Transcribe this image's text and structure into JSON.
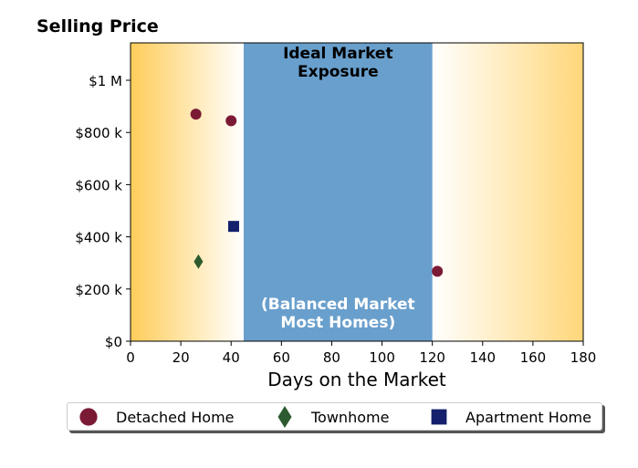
{
  "chart_data": {
    "type": "scatter",
    "title": "Selling Price",
    "xlabel": "Days on the Market",
    "ylabel": "",
    "xlim": [
      0,
      180
    ],
    "ylim": [
      0,
      1000000
    ],
    "x_ticks": [
      0,
      20,
      40,
      60,
      80,
      100,
      120,
      140,
      160,
      180
    ],
    "x_tick_labels": [
      "0",
      "20",
      "40",
      "60",
      "80",
      "100",
      "120",
      "140",
      "160",
      "180"
    ],
    "y_ticks": [
      0,
      200000,
      400000,
      600000,
      800000,
      1000000
    ],
    "y_tick_labels": [
      "$0",
      "$200 k",
      "$400 k",
      "$600 k",
      "$800 k",
      "$1 M"
    ],
    "grid": false,
    "ideal_band": {
      "x_range": [
        45,
        120
      ],
      "label_top": "Ideal Market\nExposure",
      "label_bottom": "(Balanced Market\nMost Homes)",
      "color": "#699fcc"
    },
    "background_gradient": {
      "edge_color": "#ffcd5a",
      "center_color": "#ffffff"
    },
    "series": [
      {
        "name": "Detached Home",
        "marker": "circle",
        "color": "#7b1a35",
        "points": [
          [
            26,
            870000
          ],
          [
            40,
            845000
          ],
          [
            122,
            268000
          ]
        ]
      },
      {
        "name": "Townhome",
        "marker": "diamond",
        "color": "#2d5a2f",
        "points": [
          [
            27,
            305000
          ]
        ]
      },
      {
        "name": "Apartment Home",
        "marker": "square",
        "color": "#14206b",
        "points": [
          [
            41,
            440000
          ]
        ]
      }
    ],
    "legend_position": "bottom"
  }
}
